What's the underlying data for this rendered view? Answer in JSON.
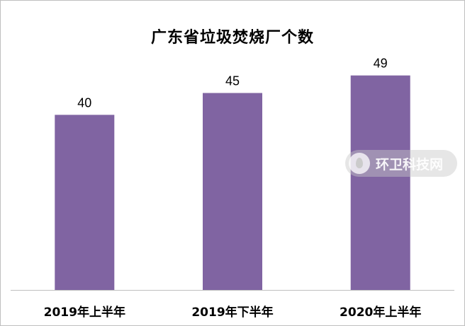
{
  "chart_data": {
    "type": "bar",
    "title": "广东省垃圾焚烧厂个数",
    "categories": [
      "2019年上半年",
      "2019年下半年",
      "2020年上半年"
    ],
    "values": [
      40,
      45,
      49
    ],
    "ylim": [
      0,
      58
    ],
    "grid": false,
    "legend": "none",
    "bar_color": "#8064a2"
  },
  "watermark": {
    "text": "环卫科技网",
    "icon": "droplet-icon"
  }
}
